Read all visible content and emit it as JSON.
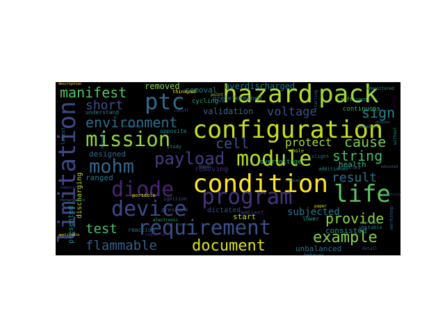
{
  "words": [
    {
      "text": "hazard",
      "color": "#b5de2b"
    },
    {
      "text": "pack",
      "color": "#a0da39"
    },
    {
      "text": "configuration",
      "color": "#c8e020"
    },
    {
      "text": "condition",
      "color": "#fde725"
    },
    {
      "text": "mission",
      "color": "#90d743"
    },
    {
      "text": "limitation",
      "color": "#3e4989"
    },
    {
      "text": "program",
      "color": "#46337e"
    },
    {
      "text": "module",
      "color": "#b5de2b"
    },
    {
      "text": "life",
      "color": "#5ec962"
    },
    {
      "text": "device",
      "color": "#3e4a89"
    },
    {
      "text": "diode",
      "color": "#482475"
    },
    {
      "text": "requirement",
      "color": "#3b518b"
    },
    {
      "text": "ptc",
      "color": "#306a8e"
    },
    {
      "text": "mohm",
      "color": "#31668e"
    },
    {
      "text": "payload",
      "color": "#433e85"
    },
    {
      "text": "environment",
      "color": "#2e6f8e"
    },
    {
      "text": "document",
      "color": "#dde318"
    },
    {
      "text": "example",
      "color": "#84d44b"
    },
    {
      "text": "manifest",
      "color": "#52c569"
    },
    {
      "text": "short",
      "color": "#3b528b"
    },
    {
      "text": "cell",
      "color": "#3b528b"
    },
    {
      "text": "cause",
      "color": "#7ad151"
    },
    {
      "text": "string",
      "color": "#44bf70"
    },
    {
      "text": "result",
      "color": "#2c728e"
    },
    {
      "text": "provide",
      "color": "#8fd744"
    },
    {
      "text": "voltage",
      "color": "#3b528b"
    },
    {
      "text": "sign",
      "color": "#25848e"
    },
    {
      "text": "protect",
      "color": "#a5db36"
    },
    {
      "text": "test",
      "color": "#4ac16d"
    },
    {
      "text": "flammable",
      "color": "#355f8d"
    },
    {
      "text": "subjected",
      "color": "#2a788e"
    },
    {
      "text": "validation",
      "color": "#31688e"
    },
    {
      "text": "overdischarged",
      "color": "#287c8e"
    },
    {
      "text": "removed",
      "color": "#89d548"
    },
    {
      "text": "removal",
      "color": "#26828e"
    },
    {
      "text": "unbalanced",
      "color": "#2d718e"
    },
    {
      "text": "consisted",
      "color": "#21918c"
    },
    {
      "text": "health",
      "color": "#34b679"
    },
    {
      "text": "designed",
      "color": "#306a8e"
    },
    {
      "text": "ranged",
      "color": "#287c8e"
    },
    {
      "text": "discharging",
      "color": "#b8de29"
    },
    {
      "text": "presented",
      "color": "#21908d"
    },
    {
      "text": "start",
      "color": "#c2df23"
    },
    {
      "text": "dictated",
      "color": "#3e4c8a"
    },
    {
      "text": "removing",
      "color": "#472d7b"
    },
    {
      "text": "overvoltage",
      "color": "#35b779"
    },
    {
      "text": "cycling",
      "color": "#22a785"
    },
    {
      "text": "predetermined",
      "color": "#2c738e"
    },
    {
      "text": "continuous",
      "color": "#37b878"
    },
    {
      "text": "lower",
      "color": "#1fa187"
    },
    {
      "text": "opposite",
      "color": "#21918c"
    },
    {
      "text": "pressure",
      "color": "#3b528b"
    },
    {
      "text": "understand",
      "color": "#25858e"
    },
    {
      "text": "reaction",
      "color": "#2a788e"
    },
    {
      "text": "ambient",
      "color": "#46337e"
    },
    {
      "text": "thinkpad",
      "color": "#fde725"
    },
    {
      "text": "important",
      "color": "#48186a"
    },
    {
      "text": "articles",
      "color": "#2e6e8e"
    },
    {
      "text": "slight",
      "color": "#2c728e"
    },
    {
      "text": "whole",
      "color": "#addc30"
    },
    {
      "text": "additional",
      "color": "#228d8d"
    },
    {
      "text": "unstable",
      "color": "#287d8e"
    },
    {
      "text": "behaves",
      "color": "#2c738e"
    },
    {
      "text": "soft",
      "color": "#6ccd5a"
    },
    {
      "text": "seen",
      "color": "#1f9e89"
    },
    {
      "text": "study",
      "color": "#21918c"
    },
    {
      "text": "portable",
      "color": "#dde318"
    },
    {
      "text": "ignition",
      "color": "#3b528b"
    },
    {
      "text": "electronic",
      "color": "#35b779"
    },
    {
      "text": "anomalous",
      "color": "#25848e"
    },
    {
      "text": "detail",
      "color": "#3b528b"
    },
    {
      "text": "workshop",
      "color": "#38588c"
    },
    {
      "text": "latest",
      "color": "#2a788e"
    },
    {
      "text": "paper",
      "color": "#dde318"
    },
    {
      "text": "without",
      "color": "#1e9b8a"
    },
    {
      "text": "point",
      "color": "#bddf26"
    },
    {
      "text": "cutoff",
      "color": "#3e4a89"
    },
    {
      "text": "equal",
      "color": "#2c728e"
    },
    {
      "text": "starting",
      "color": "#2d708e"
    },
    {
      "text": "various",
      "color": "#25858e"
    },
    {
      "text": "unmonitored",
      "color": "#1fa088"
    },
    {
      "text": "description",
      "color": "#fde725"
    },
    {
      "text": "degraded",
      "color": "#2e6f8e"
    },
    {
      "text": "incurring",
      "color": "#2c738e"
    },
    {
      "text": "educated",
      "color": "#2d708e"
    },
    {
      "text": "electrolyte",
      "color": "#3b528b"
    },
    {
      "text": "applicable",
      "color": "#fde725"
    },
    {
      "text": "obvious",
      "color": "#2c728e"
    },
    {
      "text": "rechargeable",
      "color": "#287d8e"
    },
    {
      "text": "safely",
      "color": "#440154"
    },
    {
      "text": "leakage",
      "color": "#31688e"
    },
    {
      "text": "help",
      "color": "#2c738e"
    },
    {
      "text": "chemistry",
      "color": "#3b528b"
    },
    {
      "text": "reduced",
      "color": "#1f9e89"
    }
  ]
}
